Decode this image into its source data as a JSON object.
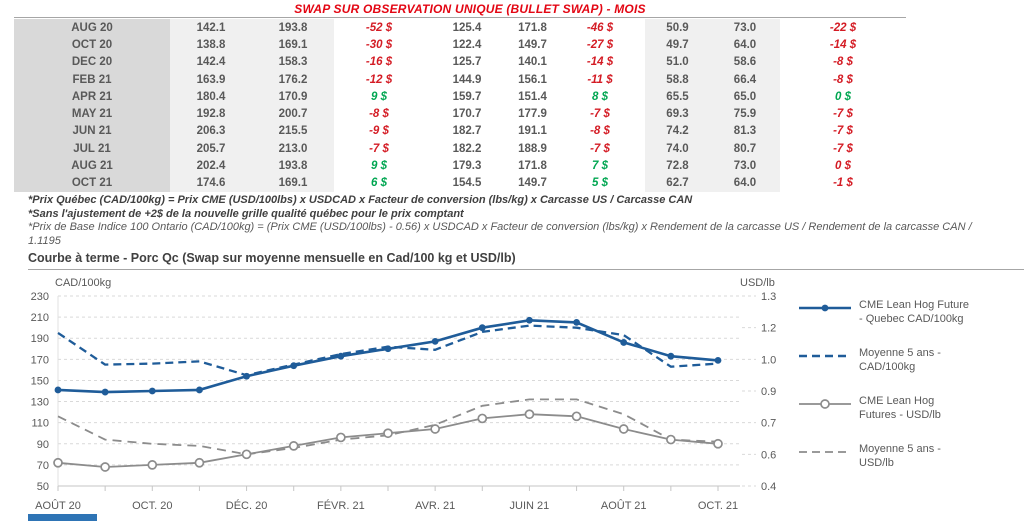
{
  "colors": {
    "title_red": "#e30613",
    "diff_negative": "#d41b24",
    "diff_positive": "#00a651",
    "series_blue": "#1f5c99",
    "series_grey": "#8c8c8c",
    "table_month_bg": "#d9d9d9",
    "table_shade_bg": "#f0f0f0",
    "gridline": "#d9d9d9",
    "axis_text": "#595959"
  },
  "report": {
    "title": "SWAP SUR OBSERVATION UNIQUE (BULLET SWAP) - MOIS",
    "footnotes": [
      "*Prix Québec (CAD/100kg) = Prix CME (USD/100lbs) x USDCAD x Facteur de conversion (lbs/kg) x Carcasse US / Carcasse CAN",
      "*Sans l'ajustement de +2$ de la nouvelle grille qualité québec pour le prix comptant",
      "*Prix de Base Indice 100 Ontario (CAD/100kg) = (Prix CME (USD/100lbs) - 0.56) x USDCAD x Facteur de conversion (lbs/kg) x Rendement de la carcasse US / Rendement de la carcasse CAN / 1.1195"
    ],
    "section_heading": "Courbe à terme - Porc Qc (Swap sur moyenne mensuelle en Cad/100 kg et USD/lb)"
  },
  "table": {
    "rows": [
      {
        "month": "AUG 20",
        "values": [
          "142.1",
          "193.8",
          "-52 $",
          "125.4",
          "171.8",
          "-46 $",
          "50.9",
          "73.0",
          "-22 $"
        ],
        "diff_signs": [
          "neg",
          "neg",
          "neg"
        ]
      },
      {
        "month": "OCT 20",
        "values": [
          "138.8",
          "169.1",
          "-30 $",
          "122.4",
          "149.7",
          "-27 $",
          "49.7",
          "64.0",
          "-14 $"
        ],
        "diff_signs": [
          "neg",
          "neg",
          "neg"
        ]
      },
      {
        "month": "DEC 20",
        "values": [
          "142.4",
          "158.3",
          "-16 $",
          "125.7",
          "140.1",
          "-14 $",
          "51.0",
          "58.6",
          "-8 $"
        ],
        "diff_signs": [
          "neg",
          "neg",
          "neg"
        ]
      },
      {
        "month": "FEB 21",
        "values": [
          "163.9",
          "176.2",
          "-12 $",
          "144.9",
          "156.1",
          "-11 $",
          "58.8",
          "66.4",
          "-8 $"
        ],
        "diff_signs": [
          "neg",
          "neg",
          "neg"
        ]
      },
      {
        "month": "APR 21",
        "values": [
          "180.4",
          "170.9",
          "9 $",
          "159.7",
          "151.4",
          "8 $",
          "65.5",
          "65.0",
          "0 $"
        ],
        "diff_signs": [
          "pos",
          "pos",
          "pos"
        ]
      },
      {
        "month": "MAY 21",
        "values": [
          "192.8",
          "200.7",
          "-8 $",
          "170.7",
          "177.9",
          "-7 $",
          "69.3",
          "75.9",
          "-7 $"
        ],
        "diff_signs": [
          "neg",
          "neg",
          "neg"
        ]
      },
      {
        "month": "JUN 21",
        "values": [
          "206.3",
          "215.5",
          "-9 $",
          "182.7",
          "191.1",
          "-8 $",
          "74.2",
          "81.3",
          "-7 $"
        ],
        "diff_signs": [
          "neg",
          "neg",
          "neg"
        ]
      },
      {
        "month": "JUL 21",
        "values": [
          "205.7",
          "213.0",
          "-7 $",
          "182.2",
          "188.9",
          "-7 $",
          "74.0",
          "80.7",
          "-7 $"
        ],
        "diff_signs": [
          "neg",
          "neg",
          "neg"
        ]
      },
      {
        "month": "AUG 21",
        "values": [
          "202.4",
          "193.8",
          "9 $",
          "179.3",
          "171.8",
          "7 $",
          "72.8",
          "73.0",
          "0 $"
        ],
        "diff_signs": [
          "pos",
          "pos",
          "neg"
        ]
      },
      {
        "month": "OCT 21",
        "values": [
          "174.6",
          "169.1",
          "6 $",
          "154.5",
          "149.7",
          "5 $",
          "62.7",
          "64.0",
          "-1 $"
        ],
        "diff_signs": [
          "pos",
          "pos",
          "neg"
        ]
      }
    ]
  },
  "chart_data": {
    "type": "line",
    "title": "Courbe à terme - Porc Qc (Swap sur moyenne mensuelle en Cad/100 kg et USD/lb)",
    "n_points": 15,
    "x_tick_labels": [
      "AOÛT 20",
      "OCT. 20",
      "DÉC. 20",
      "FÉVR. 21",
      "AVR. 21",
      "JUIN 21",
      "AOÛT 21",
      "OCT. 21"
    ],
    "label_every": 2,
    "left_axis": {
      "title": "CAD/100kg",
      "min": 50,
      "max": 230,
      "step": 20
    },
    "right_axis": {
      "title": "USD/lb",
      "min": 0.4,
      "max": 1.3,
      "labels": [
        "1.3",
        "1.2",
        "1.0",
        "0.9",
        "0.7",
        "0.6",
        "0.4"
      ]
    },
    "grid": true,
    "legend_position": "right",
    "series": [
      {
        "name": "CME Lean Hog Future - Quebec CAD/100kg",
        "legend_label": "CME Lean Hog Future\n- Quebec CAD/100kg",
        "axis": "left",
        "line": "solid",
        "marker": "filled",
        "color": "#1f5c99",
        "values": [
          141,
          139,
          140,
          141,
          154,
          164,
          173,
          180,
          187,
          200,
          207,
          205,
          186,
          173,
          169
        ]
      },
      {
        "name": "Moyenne 5 ans - CAD/100kg",
        "legend_label": "Moyenne 5 ans -\nCAD/100kg",
        "axis": "left",
        "line": "dashed",
        "marker": "none",
        "color": "#1f5c99",
        "values": [
          195,
          165,
          166,
          168,
          155,
          165,
          175,
          182,
          179,
          196,
          202,
          200,
          193,
          163,
          166
        ]
      },
      {
        "name": "CME Lean Hog Futures - USD/lb",
        "legend_label": "CME Lean Hog\nFutures - USD/lb",
        "axis": "right",
        "line": "solid",
        "marker": "open",
        "color": "#8c8c8c",
        "values": [
          0.51,
          0.49,
          0.5,
          0.51,
          0.55,
          0.59,
          0.63,
          0.65,
          0.67,
          0.72,
          0.74,
          0.73,
          0.67,
          0.62,
          0.6
        ]
      },
      {
        "name": "Moyenne 5 ans - USD/lb",
        "legend_label": "Moyenne 5 ans -\nUSD/lb",
        "axis": "right",
        "line": "dashed",
        "marker": "none",
        "color": "#8c8c8c",
        "values": [
          0.73,
          0.62,
          0.6,
          0.59,
          0.55,
          0.58,
          0.62,
          0.64,
          0.69,
          0.78,
          0.81,
          0.81,
          0.74,
          0.62,
          0.61
        ]
      }
    ]
  }
}
